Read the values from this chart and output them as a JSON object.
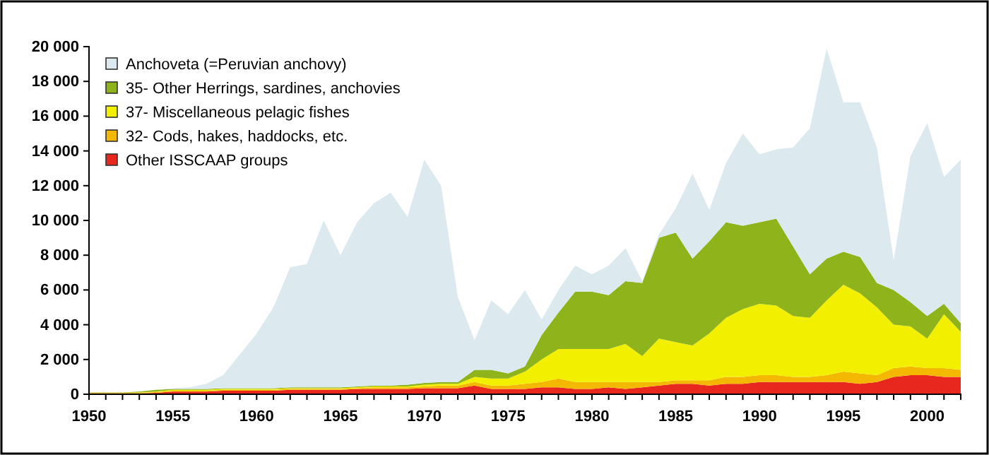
{
  "chart_data": {
    "type": "area",
    "stacked": true,
    "legend": "top left",
    "grid": false,
    "x": [
      1950,
      1951,
      1952,
      1953,
      1954,
      1955,
      1956,
      1957,
      1958,
      1959,
      1960,
      1961,
      1962,
      1963,
      1964,
      1965,
      1966,
      1967,
      1968,
      1969,
      1970,
      1971,
      1972,
      1973,
      1974,
      1975,
      1976,
      1977,
      1978,
      1979,
      1980,
      1981,
      1982,
      1983,
      1984,
      1985,
      1986,
      1987,
      1988,
      1989,
      1990,
      1991,
      1992,
      1993,
      1994,
      1995,
      1996,
      1997,
      1998,
      1999,
      2000,
      2001,
      2002
    ],
    "xlim": [
      1950,
      2002
    ],
    "xticks": [
      1950,
      {
        "value": 1951,
        "label": null
      },
      {
        "value": 1952,
        "label": null
      },
      {
        "value": 1953,
        "label": null
      },
      {
        "value": 1954,
        "label": null
      },
      1955,
      {
        "value": 1956,
        "label": null
      },
      {
        "value": 1957,
        "label": null
      },
      {
        "value": 1958,
        "label": null
      },
      {
        "value": 1959,
        "label": null
      },
      1960,
      {
        "value": 1961,
        "label": null
      },
      {
        "value": 1962,
        "label": null
      },
      {
        "value": 1963,
        "label": null
      },
      {
        "value": 1964,
        "label": null
      },
      1965,
      {
        "value": 1966,
        "label": null
      },
      {
        "value": 1967,
        "label": null
      },
      {
        "value": 1968,
        "label": null
      },
      {
        "value": 1969,
        "label": null
      },
      1970,
      {
        "value": 1971,
        "label": null
      },
      {
        "value": 1972,
        "label": null
      },
      {
        "value": 1973,
        "label": null
      },
      {
        "value": 1974,
        "label": null
      },
      1975,
      {
        "value": 1976,
        "label": null
      },
      {
        "value": 1977,
        "label": null
      },
      {
        "value": 1978,
        "label": null
      },
      {
        "value": 1979,
        "label": null
      },
      1980,
      {
        "value": 1981,
        "label": null
      },
      {
        "value": 1982,
        "label": null
      },
      {
        "value": 1983,
        "label": null
      },
      {
        "value": 1984,
        "label": null
      },
      1985,
      {
        "value": 1986,
        "label": null
      },
      {
        "value": 1987,
        "label": null
      },
      {
        "value": 1988,
        "label": null
      },
      {
        "value": 1989,
        "label": null
      },
      1990,
      {
        "value": 1991,
        "label": null
      },
      {
        "value": 1992,
        "label": null
      },
      {
        "value": 1993,
        "label": null
      },
      {
        "value": 1994,
        "label": null
      },
      1995,
      {
        "value": 1996,
        "label": null
      },
      {
        "value": 1997,
        "label": null
      },
      {
        "value": 1998,
        "label": null
      },
      {
        "value": 1999,
        "label": null
      },
      2000,
      {
        "value": 2001,
        "label": null
      },
      {
        "value": 2002,
        "label": null
      }
    ],
    "ylim": [
      0,
      20000
    ],
    "yticks": [
      0,
      {
        "value": 2000,
        "label": "2 000"
      },
      {
        "value": 4000,
        "label": "4 000"
      },
      {
        "value": 6000,
        "label": "6 000"
      },
      {
        "value": 8000,
        "label": "8 000"
      },
      {
        "value": 10000,
        "label": "10 000"
      },
      {
        "value": 12000,
        "label": "12 000"
      },
      {
        "value": 14000,
        "label": "14 000"
      },
      {
        "value": 16000,
        "label": "16 000"
      },
      {
        "value": 18000,
        "label": "18 000"
      },
      {
        "value": 20000,
        "label": "20 000"
      }
    ],
    "series": [
      {
        "name": "Other ISSCAAP groups",
        "color": "#e8281e",
        "values": [
          50,
          50,
          50,
          50,
          80,
          150,
          150,
          150,
          200,
          200,
          200,
          200,
          250,
          250,
          250,
          250,
          300,
          300,
          300,
          300,
          350,
          350,
          350,
          500,
          300,
          300,
          300,
          400,
          400,
          300,
          300,
          400,
          300,
          400,
          500,
          600,
          600,
          500,
          600,
          600,
          700,
          700,
          700,
          700,
          700,
          700,
          600,
          700,
          1000,
          1100,
          1100,
          1000,
          1000
        ]
      },
      {
        "name": "32- Cods, hakes, haddocks, etc.",
        "color": "#f5b800",
        "values": [
          30,
          30,
          30,
          30,
          40,
          50,
          50,
          50,
          50,
          50,
          50,
          50,
          50,
          50,
          50,
          50,
          50,
          100,
          100,
          100,
          100,
          150,
          150,
          200,
          200,
          200,
          300,
          300,
          500,
          400,
          400,
          300,
          400,
          300,
          200,
          200,
          200,
          300,
          400,
          400,
          400,
          400,
          300,
          300,
          400,
          600,
          600,
          400,
          500,
          500,
          400,
          500,
          400
        ]
      },
      {
        "name": "37- Miscellaneous pelagic fishes",
        "color": "#f2ef00",
        "values": [
          0,
          0,
          0,
          20,
          30,
          50,
          50,
          50,
          50,
          50,
          50,
          50,
          50,
          50,
          50,
          50,
          50,
          50,
          50,
          50,
          100,
          100,
          100,
          300,
          400,
          400,
          700,
          1300,
          1700,
          1900,
          1900,
          1900,
          2200,
          1500,
          2500,
          2200,
          2000,
          2700,
          3400,
          3900,
          4100,
          4000,
          3500,
          3400,
          4300,
          5000,
          4600,
          3900,
          2500,
          2300,
          1700,
          3100,
          2200
        ]
      },
      {
        "name": "35- Other Herrings, sardines, anchovies",
        "color": "#8fb31a",
        "values": [
          20,
          20,
          20,
          50,
          100,
          50,
          50,
          50,
          50,
          50,
          50,
          50,
          50,
          50,
          50,
          50,
          50,
          50,
          50,
          100,
          100,
          100,
          100,
          400,
          500,
          300,
          300,
          1400,
          2100,
          3300,
          3300,
          3100,
          3600,
          4200,
          5800,
          6300,
          5000,
          5300,
          5500,
          4800,
          4700,
          5000,
          4000,
          2500,
          2400,
          1900,
          2100,
          1400,
          2000,
          1400,
          1300,
          600,
          500
        ]
      },
      {
        "name": "Anchoveta (=Peruvian anchovy)",
        "color": "#dce9ee",
        "values": [
          0,
          0,
          0,
          0,
          0,
          50,
          100,
          300,
          750,
          1950,
          3150,
          4650,
          6900,
          7100,
          9600,
          7600,
          9450,
          10500,
          11100,
          9650,
          12850,
          11300,
          4900,
          1700,
          4000,
          3400,
          4400,
          900,
          1300,
          1500,
          1000,
          1700,
          1900,
          100,
          200,
          1400,
          4900,
          1800,
          3400,
          5300,
          3900,
          4000,
          5700,
          8400,
          12100,
          8600,
          8900,
          7800,
          1700,
          8400,
          11100,
          7300,
          9400
        ]
      }
    ]
  }
}
